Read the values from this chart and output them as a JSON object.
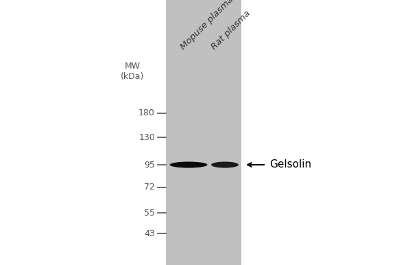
{
  "background_color": "#ffffff",
  "gel_color": "#c0c0c0",
  "mw_label": "MW\n(kDa)",
  "mw_fontsize": 9,
  "lane_labels": [
    "Mopuse plasma",
    "Rat plasma"
  ],
  "lane_label_fontsize": 9.5,
  "lane_label_rotation": 45,
  "mw_markers": [
    180,
    130,
    95,
    72,
    55,
    43
  ],
  "band_color": "#0a0a0a",
  "arrow_color": "#000000",
  "label_text": "← Gelsolin",
  "label_fontsize": 11
}
